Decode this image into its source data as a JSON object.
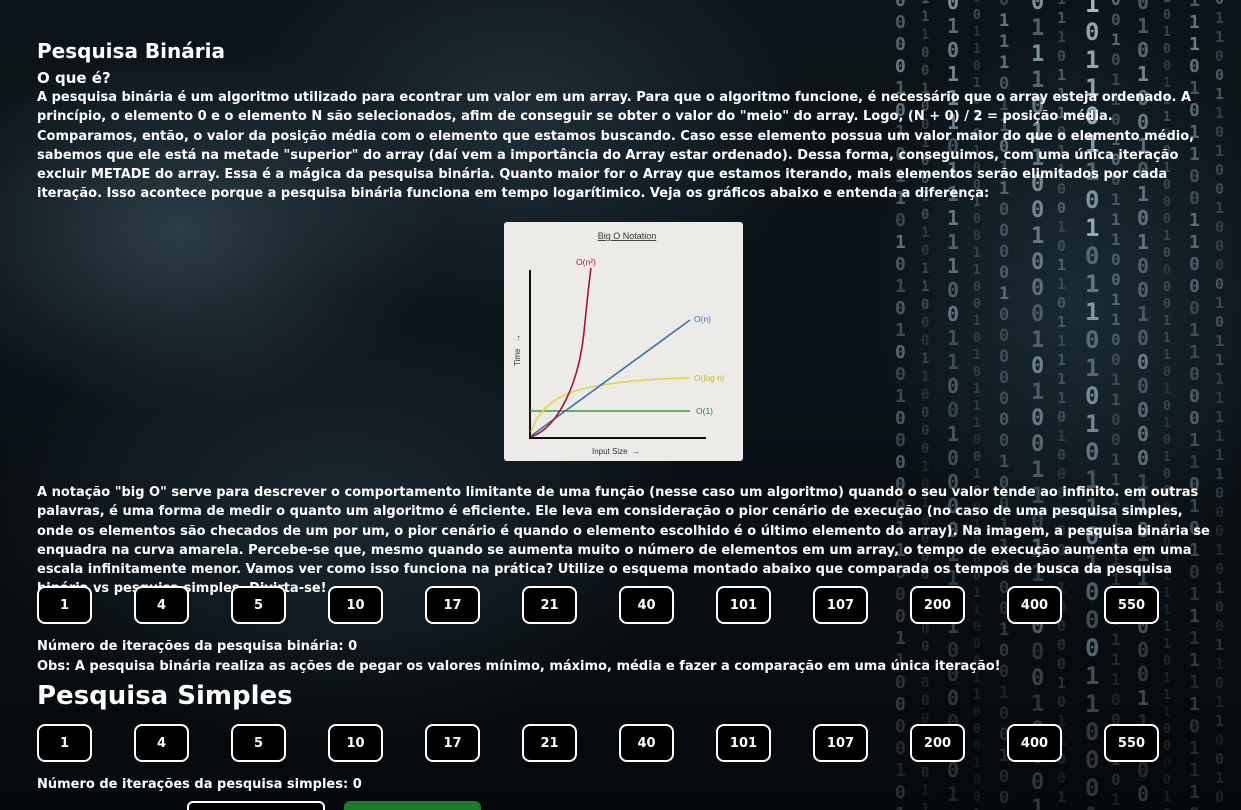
{
  "binary": {
    "title": "Pesquisa Binária",
    "subtitle": "O que é?",
    "intro": "A pesquisa binária é um algoritmo utilizado para econtrar um valor em um array. Para que o algoritmo funcione, é necessário que o array esteja ordenado. A princípio, o elemento 0 e o elemento N são selecionados, afim de conseguir se obter o valor do \"meio\" do array. Logo, (N + 0) / 2 = posição média. Comparamos, então, o valor da posição média com o elemento que estamos buscando. Caso esse elemento possua um valor maior do que o elemento médio, sabemos que ele está na metade \"superior\" do array (daí vem a importância do Array estar ordenado). Dessa forma, conseguimos, com uma única iteração excluir METADE do array. Essa é a mágica da pesquisa binária. Quanto maior for o Array que estamos iterando, mais elementos serão elimitados por cada iteração. Isso acontece porque a pesquisa binária funciona em tempo logarítimico. Veja os gráficos abaixo e entenda a diferença:",
    "explanation": "A notação \"big O\" serve para descrever o comportamento limitante de uma função (nesse caso um algoritmo) quando o seu valor tende ao infinito. em outras palavras, é uma forma de medir o quanto um algoritmo é eficiente. Ele leva em consideração o pior cenário de execução (no caso de uma pesquisa simples, onde os elementos são checados de um por um, o pior cenário é quando o elemento escolhido é o último elemento do array). Na imagem, a pesquisa binária se enquadra na curva amarela. Percebe-se que, mesmo quando se aumenta muito o número de elementos em um array, o tempo de execução aumenta em uma escala infinitamente menor. Vamos ver como isso funciona na prática? Utilize o esquema montado abaixo que comparada os tempos de busca da pesquisa binária vs pesquisa simples. Divirta-se!",
    "values": [
      "1",
      "4",
      "5",
      "10",
      "17",
      "21",
      "40",
      "101",
      "107",
      "200",
      "400",
      "550"
    ],
    "iterations_label": "Número de iterações da pesquisa binária: 0",
    "note": "Obs: A pesquisa binária realiza as ações de pegar os valores mínimo, máximo, média e fazer a comparação em uma única iteração!"
  },
  "figure": {
    "title": "Big O Notation",
    "y_axis": "Time",
    "x_axis": "Input Size",
    "curves": {
      "quadratic": "O(n²)",
      "linear": "O(n)",
      "log": "O(log n)",
      "constant": "O(1)"
    },
    "colors": {
      "quadratic": "#a3182f",
      "linear": "#3a6fb0",
      "log": "#e6d24a",
      "constant": "#3f9a3c"
    }
  },
  "simple": {
    "title": "Pesquisa Simples",
    "values": [
      "1",
      "4",
      "5",
      "10",
      "17",
      "21",
      "40",
      "101",
      "107",
      "200",
      "400",
      "550"
    ],
    "iterations_label": "Número de iterações da pesquisa simples: 0"
  }
}
